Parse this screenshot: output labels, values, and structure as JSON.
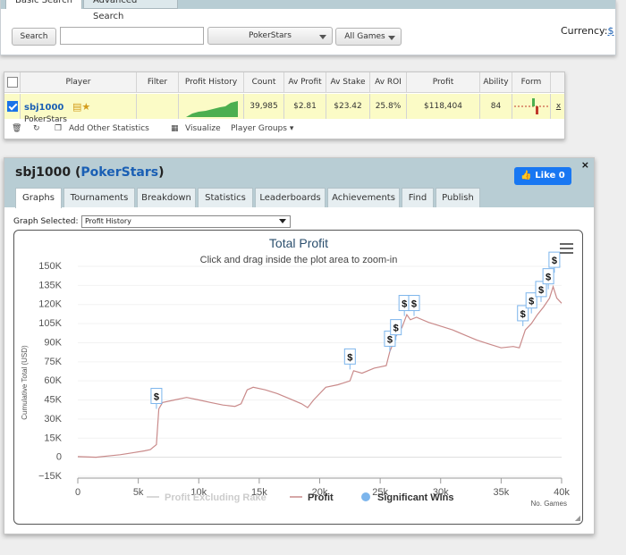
{
  "search": {
    "tabs": [
      "Basic Search",
      "Advanced Search"
    ],
    "button_label": "Search",
    "input_value": "",
    "site_value": "PokerStars",
    "games_value": "All Games",
    "currency_label": "Currency:",
    "currency_symbol": "$"
  },
  "results": {
    "columns": [
      "Player",
      "Filter",
      "Profit History",
      "Count",
      "Av Profit",
      "Av Stake",
      "Av ROI",
      "Profit",
      "Ability",
      "Form"
    ],
    "row": {
      "player_name": "sbj1000",
      "player_site": "PokerStars",
      "filter": "",
      "count": "39,985",
      "av_profit": "$2.81",
      "av_stake": "$23.42",
      "av_roi": "25.8%",
      "profit": "$118,404",
      "ability": "84",
      "remove": "x"
    },
    "toolbar": {
      "add_stats": "Add Other Statistics",
      "visualize": "Visualize",
      "player_groups": "Player Groups"
    }
  },
  "profile": {
    "player_name": "sbj1000",
    "site": "PokerStars",
    "like_label": "Like 0",
    "close_label": "×",
    "tabs": [
      "Graphs",
      "Tournaments",
      "Breakdown",
      "Statistics",
      "Leaderboards",
      "Achievements",
      "Find",
      "Publish"
    ],
    "graph_selected_label": "Graph Selected:",
    "graph_selected_value": "Profit History"
  },
  "colors": {
    "header_blue": "#b8cdd4",
    "link_blue": "#1a5fb4",
    "profit_line": "#c98a8a",
    "significant_wins": "#7cb5ec",
    "excluding_rake": "#cccccc",
    "row_highlight": "#fbfbc6"
  },
  "chart_data": {
    "type": "line",
    "title": "Total Profit",
    "subtitle": "Click and drag inside the plot area to zoom-in",
    "xlabel": "No. Games",
    "ylabel": "Cumulative Total (USD)",
    "xlim": [
      0,
      40000
    ],
    "ylim": [
      -15000,
      150000
    ],
    "x_ticks": [
      "0",
      "5k",
      "10k",
      "15k",
      "20k",
      "25k",
      "30k",
      "35k",
      "40k"
    ],
    "y_ticks": [
      "150K",
      "135K",
      "120K",
      "105K",
      "90K",
      "75K",
      "60K",
      "45K",
      "30K",
      "15K",
      "0",
      "−15K"
    ],
    "legend": [
      "Profit Excluding Rake",
      "Profit",
      "Significant Wins"
    ],
    "legend_placement": "bottom",
    "series": [
      {
        "name": "Profit",
        "points": [
          [
            0,
            500
          ],
          [
            1500,
            0
          ],
          [
            2500,
            1000
          ],
          [
            3500,
            2000
          ],
          [
            4500,
            3500
          ],
          [
            5500,
            5000
          ],
          [
            6000,
            6000
          ],
          [
            6500,
            10000
          ],
          [
            6700,
            38000
          ],
          [
            7000,
            43000
          ],
          [
            8000,
            45000
          ],
          [
            9000,
            47000
          ],
          [
            10000,
            45000
          ],
          [
            11000,
            43000
          ],
          [
            12000,
            41000
          ],
          [
            13000,
            40000
          ],
          [
            13500,
            42000
          ],
          [
            14000,
            53000
          ],
          [
            14500,
            55000
          ],
          [
            15500,
            53000
          ],
          [
            16500,
            50000
          ],
          [
            17500,
            46000
          ],
          [
            18500,
            42000
          ],
          [
            19000,
            39000
          ],
          [
            19500,
            45000
          ],
          [
            20500,
            55000
          ],
          [
            21500,
            57000
          ],
          [
            22500,
            60000
          ],
          [
            22800,
            68000
          ],
          [
            23500,
            66000
          ],
          [
            24500,
            70000
          ],
          [
            25500,
            72000
          ],
          [
            25800,
            83000
          ],
          [
            26300,
            95000
          ],
          [
            26800,
            102000
          ],
          [
            27200,
            112000
          ],
          [
            27500,
            108000
          ],
          [
            28000,
            110000
          ],
          [
            29000,
            106000
          ],
          [
            30000,
            103000
          ],
          [
            31000,
            100000
          ],
          [
            32000,
            96000
          ],
          [
            33000,
            92000
          ],
          [
            34000,
            89000
          ],
          [
            35000,
            86000
          ],
          [
            36000,
            87000
          ],
          [
            36500,
            86000
          ],
          [
            37000,
            100000
          ],
          [
            37500,
            105000
          ],
          [
            38000,
            112000
          ],
          [
            38500,
            118000
          ],
          [
            39000,
            125000
          ],
          [
            39300,
            134000
          ],
          [
            39600,
            125000
          ],
          [
            40000,
            121000
          ]
        ]
      },
      {
        "name": "Significant Wins",
        "points": [
          [
            6500,
            38000
          ],
          [
            22500,
            69000
          ],
          [
            25800,
            83000
          ],
          [
            26300,
            92000
          ],
          [
            27000,
            111000
          ],
          [
            27800,
            111000
          ],
          [
            36800,
            103000
          ],
          [
            37500,
            113000
          ],
          [
            38300,
            122000
          ],
          [
            38900,
            132000
          ],
          [
            39400,
            145000
          ]
        ]
      }
    ],
    "significant_win_label": "$"
  }
}
